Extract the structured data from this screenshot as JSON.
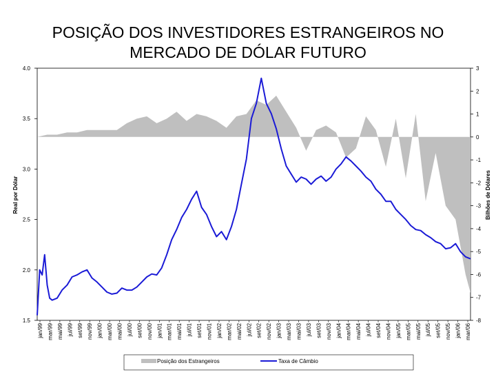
{
  "chart_data": {
    "type": "line",
    "title_line1": "POSIÇÃO DOS INVESTIDORES ESTRANGEIROS NO",
    "title_line2": "MERCADO DE DÓLAR FUTURO",
    "ylabel_left": "Real por Dólar",
    "ylabel_right": "Bilhões de Dólares",
    "ylim_left": [
      1.5,
      4.0
    ],
    "ylim_right": [
      -8,
      3
    ],
    "yticks_left": [
      "4.0",
      "3.5",
      "3.0",
      "2.5",
      "2.0",
      "1.5"
    ],
    "yticks_right": [
      "3",
      "2",
      "1",
      "0",
      "-1",
      "-2",
      "-3",
      "-4",
      "-5",
      "-6",
      "-7",
      "-8"
    ],
    "x_labels": [
      "jan/99",
      "mar/99",
      "mai/99",
      "jul/99",
      "set/99",
      "nov/99",
      "jan/00",
      "mar/00",
      "mai/00",
      "jul/00",
      "set/00",
      "nov/00",
      "jan/01",
      "mar/01",
      "mai/01",
      "jul/01",
      "set/01",
      "nov/01",
      "jan/02",
      "mar/02",
      "mai/02",
      "jul/02",
      "set/02",
      "nov/02",
      "jan/03",
      "mar/03",
      "mai/03",
      "jul/03",
      "set/03",
      "nov/03",
      "jan/04",
      "mar/04",
      "mai/04",
      "jul/04",
      "set/04",
      "nov/04",
      "jan/05",
      "mar/05",
      "mai/05",
      "jul/05",
      "set/05",
      "nov/05",
      "jan/06",
      "mar/06"
    ],
    "series": [
      {
        "name": "Posição dos Estrangeiros",
        "axis": "right",
        "color": "#bfbfbf",
        "kind": "area",
        "x": [
          0,
          4,
          8,
          12,
          16,
          20,
          24,
          28,
          32,
          36,
          40,
          44,
          48,
          52,
          56,
          60,
          64,
          68,
          72,
          76,
          80,
          84,
          88,
          92,
          96,
          100,
          104,
          108,
          112,
          116,
          120,
          124,
          128,
          132,
          136,
          140,
          144,
          148,
          152,
          156,
          160,
          164,
          168,
          172,
          174
        ],
        "values": [
          0,
          0.1,
          0.1,
          0.2,
          0.2,
          0.3,
          0.3,
          0.3,
          0.3,
          0.6,
          0.8,
          0.9,
          0.6,
          0.8,
          1.1,
          0.7,
          1.0,
          0.9,
          0.7,
          0.4,
          0.9,
          1.0,
          1.6,
          1.4,
          1.8,
          1.1,
          0.4,
          -0.6,
          0.3,
          0.5,
          0.2,
          -0.9,
          -0.5,
          0.9,
          0.3,
          -1.3,
          0.8,
          -1.8,
          1.0,
          -2.8,
          -0.7,
          -3.0,
          -3.6,
          -6.0,
          -6.8
        ]
      },
      {
        "name": "Taxa de Câmbio",
        "axis": "left",
        "color": "#1a1ad6",
        "kind": "line",
        "x": [
          0,
          1,
          2,
          3,
          4,
          5,
          6,
          8,
          10,
          12,
          14,
          16,
          18,
          20,
          22,
          24,
          26,
          28,
          30,
          32,
          34,
          36,
          38,
          40,
          42,
          44,
          46,
          48,
          50,
          52,
          54,
          56,
          58,
          60,
          62,
          64,
          66,
          68,
          70,
          72,
          74,
          76,
          78,
          80,
          82,
          84,
          86,
          88,
          90,
          92,
          94,
          96,
          98,
          100,
          102,
          104,
          106,
          108,
          110,
          112,
          114,
          116,
          118,
          120,
          122,
          124,
          126,
          128,
          130,
          132,
          134,
          136,
          138,
          140,
          142,
          144,
          146,
          148,
          150,
          152,
          154,
          156,
          158,
          160,
          162,
          164,
          166,
          168,
          170,
          172,
          174
        ],
        "values": [
          1.55,
          2.0,
          1.95,
          2.15,
          1.85,
          1.72,
          1.7,
          1.72,
          1.8,
          1.85,
          1.93,
          1.95,
          1.98,
          2.0,
          1.92,
          1.88,
          1.83,
          1.78,
          1.76,
          1.77,
          1.82,
          1.8,
          1.8,
          1.83,
          1.88,
          1.93,
          1.96,
          1.95,
          2.02,
          2.15,
          2.3,
          2.4,
          2.52,
          2.6,
          2.7,
          2.78,
          2.62,
          2.55,
          2.43,
          2.33,
          2.38,
          2.3,
          2.43,
          2.6,
          2.85,
          3.1,
          3.5,
          3.65,
          3.9,
          3.65,
          3.55,
          3.4,
          3.2,
          3.03,
          2.95,
          2.87,
          2.92,
          2.9,
          2.85,
          2.9,
          2.93,
          2.88,
          2.92,
          3.0,
          3.05,
          3.12,
          3.08,
          3.03,
          2.98,
          2.92,
          2.88,
          2.8,
          2.75,
          2.68,
          2.68,
          2.6,
          2.55,
          2.5,
          2.44,
          2.4,
          2.39,
          2.35,
          2.32,
          2.28,
          2.26,
          2.21,
          2.22,
          2.26,
          2.18,
          2.13,
          2.11
        ]
      }
    ]
  },
  "legend": {
    "item1": "Posição dos Estrangeiros",
    "item2": "Taxa de Câmbio"
  }
}
